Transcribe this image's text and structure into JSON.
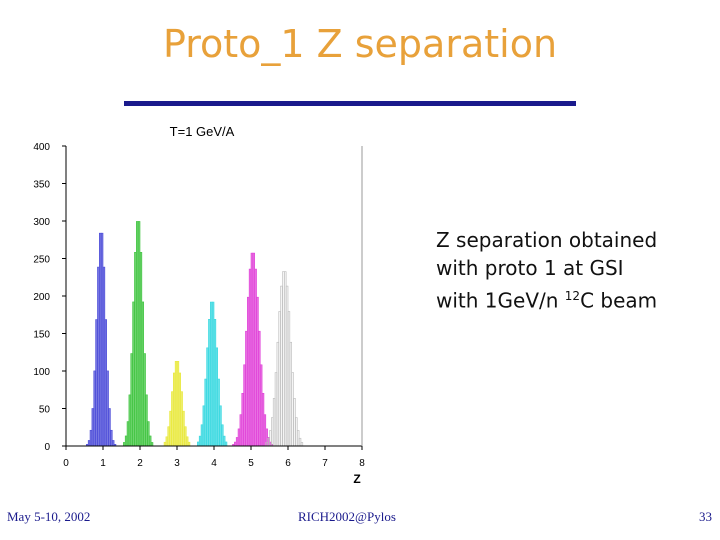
{
  "slide": {
    "title": "Proto_1 Z separation",
    "caption_line1": "Z separation obtained",
    "caption_line2": "with proto 1 at GSI",
    "caption_line3_prefix": "with 1GeV/n ",
    "caption_line3_sup": "12",
    "caption_line3_suffix": "C beam",
    "footer_left": "May 5-10, 2002",
    "footer_center": "RICH2002@Pylos",
    "footer_right": "33",
    "colors": {
      "title": "#e8a13a",
      "rule": "#1a1a8c"
    }
  },
  "chart_data": {
    "type": "histogram",
    "title": "T=1 GeV/A",
    "xlabel": "Z",
    "ylabel": "",
    "xlim": [
      0,
      8
    ],
    "ylim": [
      0,
      400
    ],
    "xticks": [
      0,
      1,
      2,
      3,
      4,
      5,
      6,
      7,
      8
    ],
    "yticks": [
      0,
      50,
      100,
      150,
      200,
      250,
      300,
      350,
      400
    ],
    "grid": false,
    "series": [
      {
        "peak_z": 0.95,
        "peak_count": 290,
        "sigma": 0.12,
        "color": "#4a4ad8"
      },
      {
        "peak_z": 1.95,
        "peak_count": 305,
        "sigma": 0.13,
        "color": "#3ec43e"
      },
      {
        "peak_z": 3.0,
        "peak_count": 115,
        "sigma": 0.13,
        "color": "#e8e83a"
      },
      {
        "peak_z": 3.95,
        "peak_count": 195,
        "sigma": 0.14,
        "color": "#36d8e0"
      },
      {
        "peak_z": 5.05,
        "peak_count": 260,
        "sigma": 0.17,
        "color": "#e040d8"
      },
      {
        "peak_z": 5.9,
        "peak_count": 235,
        "sigma": 0.17,
        "color": "#bbbbbb"
      }
    ]
  }
}
